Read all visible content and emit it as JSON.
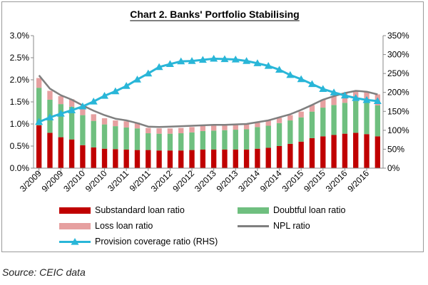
{
  "chart_data": {
    "type": "bar",
    "title": "Chart 2. Banks' Portfolio Stabilising",
    "categories": [
      "3/2009",
      "6/2009",
      "9/2009",
      "12/2009",
      "3/2010",
      "6/2010",
      "9/2010",
      "12/2010",
      "3/2011",
      "6/2011",
      "9/2011",
      "12/2011",
      "3/2012",
      "6/2012",
      "9/2012",
      "12/2012",
      "3/2013",
      "6/2013",
      "9/2013",
      "12/2013",
      "3/2014",
      "6/2014",
      "9/2014",
      "12/2014",
      "3/2015",
      "6/2015",
      "9/2015",
      "12/2015",
      "3/2016",
      "6/2016",
      "9/2016",
      "12/2016"
    ],
    "x_tick_labels": [
      "3/2009",
      "9/2009",
      "3/2010",
      "9/2010",
      "3/2011",
      "9/2011",
      "3/2012",
      "9/2012",
      "3/2013",
      "9/2013",
      "3/2014",
      "9/2014",
      "3/2015",
      "9/2015",
      "3/2016",
      "9/2016"
    ],
    "y_left": {
      "min": 0,
      "max": 0.03,
      "ticks": [
        "0.0%",
        "0.5%",
        "1.0%",
        "1.5%",
        "2.0%",
        "2.5%",
        "3.0%"
      ]
    },
    "y_right": {
      "min": 0,
      "max": 3.5,
      "ticks": [
        "0%",
        "50%",
        "100%",
        "150%",
        "200%",
        "250%",
        "300%",
        "350%"
      ]
    },
    "series": [
      {
        "name": "Substandard loan ratio",
        "type": "bar",
        "axis": "left",
        "color": "#c00000",
        "values": [
          0.0097,
          0.008,
          0.007,
          0.0065,
          0.0052,
          0.0047,
          0.0044,
          0.0043,
          0.0042,
          0.0041,
          0.0041,
          0.004,
          0.004,
          0.004,
          0.0041,
          0.0042,
          0.0042,
          0.0042,
          0.0042,
          0.0042,
          0.0044,
          0.0046,
          0.005,
          0.0055,
          0.006,
          0.0068,
          0.0072,
          0.0075,
          0.0078,
          0.008,
          0.0077,
          0.0072
        ]
      },
      {
        "name": "Doubtful loan ratio",
        "type": "bar",
        "axis": "left",
        "color": "#6fbf7f",
        "values": [
          0.0085,
          0.0075,
          0.0075,
          0.0074,
          0.0068,
          0.006,
          0.0055,
          0.0052,
          0.005,
          0.0049,
          0.0038,
          0.0038,
          0.0038,
          0.0039,
          0.004,
          0.0042,
          0.0043,
          0.0044,
          0.0045,
          0.0046,
          0.0049,
          0.005,
          0.0052,
          0.0053,
          0.0055,
          0.006,
          0.0065,
          0.0068,
          0.007,
          0.0072,
          0.0072,
          0.007
        ]
      },
      {
        "name": "Loss loan ratio",
        "type": "bar",
        "axis": "left",
        "color": "#e6a0a0",
        "values": [
          0.0022,
          0.002,
          0.0018,
          0.0017,
          0.0016,
          0.0015,
          0.0014,
          0.0013,
          0.0014,
          0.0013,
          0.0012,
          0.0012,
          0.0012,
          0.0012,
          0.0012,
          0.0012,
          0.0012,
          0.0012,
          0.0012,
          0.0012,
          0.0012,
          0.0012,
          0.0012,
          0.0012,
          0.0013,
          0.0015,
          0.0018,
          0.002,
          0.0022,
          0.0023,
          0.0024,
          0.0025
        ]
      },
      {
        "name": "NPL ratio",
        "type": "line",
        "axis": "left",
        "color": "#7f7f7f",
        "values": [
          0.021,
          0.018,
          0.0165,
          0.0155,
          0.0142,
          0.013,
          0.012,
          0.0112,
          0.0108,
          0.0102,
          0.0094,
          0.0093,
          0.0094,
          0.0095,
          0.0096,
          0.0097,
          0.0098,
          0.0098,
          0.0099,
          0.01,
          0.0104,
          0.0108,
          0.0115,
          0.0122,
          0.0132,
          0.0143,
          0.0155,
          0.0163,
          0.017,
          0.0175,
          0.0173,
          0.0167
        ]
      },
      {
        "name": "Provision coverage ratio (RHS)",
        "type": "line",
        "axis": "right",
        "color": "#29b6d8",
        "values": [
          1.22,
          1.34,
          1.44,
          1.53,
          1.63,
          1.76,
          1.91,
          2.03,
          2.17,
          2.34,
          2.5,
          2.67,
          2.75,
          2.82,
          2.83,
          2.86,
          2.89,
          2.88,
          2.87,
          2.83,
          2.77,
          2.7,
          2.6,
          2.46,
          2.35,
          2.22,
          2.09,
          2.0,
          1.92,
          1.85,
          1.8,
          1.77
        ]
      }
    ],
    "legend_position": "bottom",
    "grid": false
  },
  "source_text": "Source: CEIC data"
}
